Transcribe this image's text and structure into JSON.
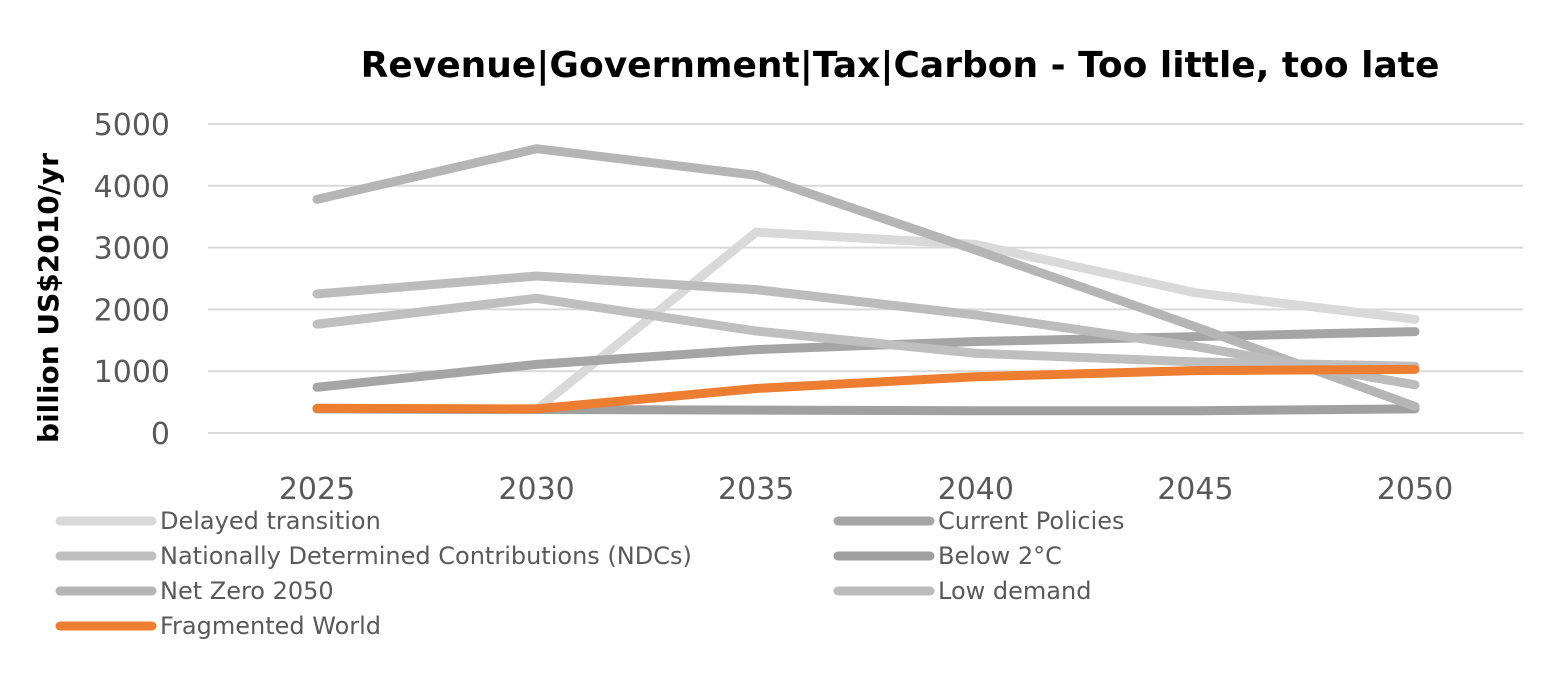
{
  "chart_data": {
    "type": "line",
    "title": "Revenue|Government|Tax|Carbon - Too little, too late",
    "xlabel": "",
    "ylabel": "billion US$2010/yr",
    "x": [
      "2025",
      "2030",
      "2035",
      "2040",
      "2045",
      "2050"
    ],
    "ylim": [
      0,
      5000
    ],
    "yticks": [
      0,
      1000,
      2000,
      3000,
      4000,
      5000
    ],
    "grid": true,
    "legend_position": "bottom",
    "series": [
      {
        "name": "Delayed transition",
        "color": "#d9d9d9",
        "values": [
          null,
          380,
          3250,
          3050,
          2270,
          1840
        ]
      },
      {
        "name": "Current Policies",
        "color": "#a5a5a5",
        "values": [
          740,
          1110,
          1350,
          1480,
          1560,
          1640
        ]
      },
      {
        "name": "Nationally Determined Contributions (NDCs)",
        "color": "#bfbfbf",
        "values": [
          1760,
          2180,
          1650,
          1290,
          1150,
          1080
        ]
      },
      {
        "name": "Below 2°C",
        "color": "#a0a0a0",
        "values": [
          390,
          380,
          370,
          360,
          360,
          390
        ]
      },
      {
        "name": "Net Zero 2050",
        "color": "#b5b5b5",
        "values": [
          3780,
          4600,
          4170,
          2960,
          1720,
          430
        ]
      },
      {
        "name": "Low demand",
        "color": "#bcbcbc",
        "values": [
          2250,
          2540,
          2320,
          1910,
          1400,
          780
        ]
      },
      {
        "name": "Fragmented World",
        "color": "#ed7d31",
        "values": [
          400,
          390,
          720,
          910,
          1010,
          1030
        ]
      }
    ]
  }
}
